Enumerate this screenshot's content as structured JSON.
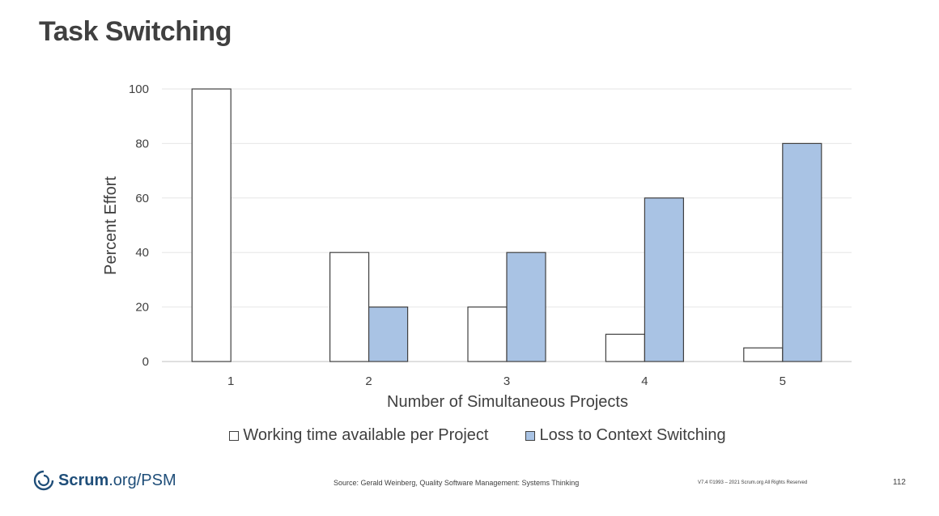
{
  "slide": {
    "title": "Task Switching"
  },
  "chart_data": {
    "type": "bar",
    "categories": [
      "1",
      "2",
      "3",
      "4",
      "5"
    ],
    "series": [
      {
        "name": "Working time available per Project",
        "values": [
          100,
          40,
          20,
          10,
          5
        ],
        "color": "#ffffff"
      },
      {
        "name": "Loss to Context Switching",
        "values": [
          0,
          20,
          40,
          60,
          80
        ],
        "color": "#a9c3e4"
      }
    ],
    "title": "",
    "xlabel": "Number of Simultaneous Projects",
    "ylabel": "Percent Effort",
    "ylim": [
      0,
      100
    ],
    "yticks": [
      0,
      20,
      40,
      60,
      80,
      100
    ],
    "grid": true,
    "legend": "bottom"
  },
  "footer": {
    "logo_main": "Scrum",
    "logo_suffix": ".org/PSM",
    "source": "Source: Gerald Weinberg, Quality Software Management: Systems Thinking",
    "copyright": "V7.4 ©1993 – 2021 Scrum.org All Rights Reserved",
    "page_number": "112"
  }
}
